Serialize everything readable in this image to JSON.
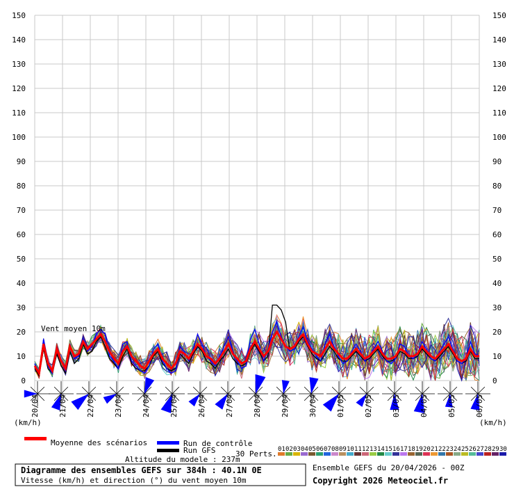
{
  "chart_data": {
    "type": "line",
    "title": "Diagramme des ensembles GEFS sur 384h : 40.1N 0E",
    "subtitle": "Vitesse (km/h) et direction (°) du vent moyen 10m",
    "series_label": "Vent moyen 10m",
    "unit_label": "(km/h)",
    "altitude_label": "Altitude du modele : 237m",
    "run_label": "Ensemble GEFS du 20/04/2026 - 00Z",
    "copyright": "Copyright 2026 Meteociel.fr",
    "ylim": [
      0,
      150
    ],
    "y_ticks": [
      0,
      10,
      20,
      30,
      40,
      50,
      60,
      70,
      80,
      90,
      100,
      110,
      120,
      130,
      140,
      150
    ],
    "x_labels": [
      "20/04",
      "21/04",
      "22/04",
      "23/04",
      "24/04",
      "25/04",
      "26/04",
      "27/04",
      "28/04",
      "29/04",
      "30/04",
      "01/05",
      "02/05",
      "03/05",
      "04/05",
      "05/05",
      "06/05"
    ],
    "x_step_hours": 6,
    "legend": {
      "mean": "Moyenne des scénarios",
      "control": "Run de contrôle",
      "gfs": "Run GFS",
      "perts": "30 Perts."
    },
    "pert_labels": [
      "01",
      "02",
      "03",
      "04",
      "05",
      "06",
      "07",
      "08",
      "09",
      "10",
      "11",
      "12",
      "13",
      "14",
      "15",
      "16",
      "17",
      "18",
      "19",
      "20",
      "21",
      "22",
      "23",
      "24",
      "25",
      "26",
      "27",
      "28",
      "29",
      "30"
    ],
    "pert_colors": [
      "#e07a2a",
      "#66aa44",
      "#d8b400",
      "#9a6ad0",
      "#7a5a30",
      "#2aa070",
      "#2266dd",
      "#cc88cc",
      "#b89060",
      "#44aacc",
      "#663333",
      "#cc6677",
      "#99cc44",
      "#228844",
      "#66cccc",
      "#333399",
      "#bb77ee",
      "#996633",
      "#556655",
      "#dd3355",
      "#ee9933",
      "#3377aa",
      "#aa5522",
      "#88aa88",
      "#bbbb22",
      "#55bb99",
      "#4444cc",
      "#bb2222",
      "#662266",
      "#1a1aaa"
    ],
    "series": [
      {
        "name": "Moyenne des scénarios",
        "color": "#ff0000",
        "values": [
          6,
          3,
          15,
          7,
          4,
          13,
          8,
          5,
          14,
          10,
          11,
          16,
          13,
          15,
          17,
          19,
          16,
          12,
          9,
          7,
          12,
          14,
          10,
          8,
          6,
          5,
          8,
          11,
          13,
          9,
          7,
          5,
          7,
          12,
          11,
          9,
          12,
          15,
          13,
          10,
          9,
          7,
          9,
          12,
          15,
          11,
          9,
          7,
          8,
          13,
          16,
          13,
          10,
          12,
          17,
          20,
          17,
          14,
          13,
          14,
          17,
          19,
          15,
          12,
          11,
          10,
          13,
          16,
          13,
          11,
          9,
          9,
          11,
          13,
          11,
          9,
          10,
          12,
          14,
          11,
          9,
          9,
          10,
          13,
          12,
          10,
          10,
          11,
          14,
          12,
          10,
          9,
          11,
          13,
          15,
          12,
          9,
          8,
          9,
          13,
          10,
          10
        ]
      },
      {
        "name": "Run de contrôle",
        "color": "#0000ff",
        "values": [
          7,
          3,
          17,
          6,
          3,
          14,
          8,
          4,
          15,
          9,
          10,
          17,
          12,
          14,
          19,
          21,
          19,
          10,
          8,
          5,
          15,
          16,
          8,
          6,
          4,
          3,
          6,
          13,
          15,
          8,
          5,
          3,
          4,
          14,
          12,
          8,
          13,
          19,
          15,
          10,
          8,
          6,
          10,
          14,
          18,
          12,
          8,
          5,
          6,
          17,
          21,
          15,
          8,
          13,
          20,
          24,
          18,
          14,
          12,
          13,
          18,
          22,
          16,
          13,
          10,
          8,
          15,
          19,
          14,
          10,
          7,
          8,
          12,
          15,
          12,
          8,
          10,
          13,
          16,
          12,
          8,
          7,
          9,
          15,
          14,
          10,
          9,
          11,
          16,
          13,
          9,
          8,
          12,
          15,
          18,
          13,
          8,
          7,
          9,
          16,
          11,
          10
        ]
      },
      {
        "name": "Run GFS",
        "color": "#000000",
        "values": [
          5,
          2,
          13,
          5,
          3,
          11,
          6,
          3,
          12,
          7,
          9,
          15,
          11,
          12,
          16,
          18,
          14,
          9,
          7,
          5,
          10,
          13,
          7,
          5,
          4,
          4,
          6,
          10,
          12,
          7,
          5,
          4,
          5,
          11,
          9,
          7,
          11,
          14,
          12,
          8,
          7,
          5,
          8,
          10,
          13,
          9,
          7,
          6,
          7,
          12,
          15,
          12,
          8,
          10,
          31,
          31,
          29,
          24,
          12,
          13,
          16,
          18,
          14,
          11,
          9,
          8,
          11,
          14,
          12,
          9,
          8,
          8,
          10,
          12,
          10,
          8,
          9,
          11,
          13,
          10,
          8,
          8,
          9,
          12,
          11,
          9,
          9,
          10,
          13,
          11,
          9,
          8,
          10,
          12,
          14,
          11,
          8,
          7,
          8,
          12,
          9,
          9
        ]
      }
    ]
  }
}
